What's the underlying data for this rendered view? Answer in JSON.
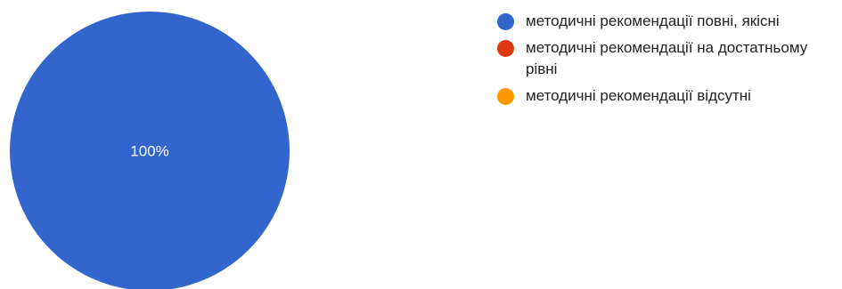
{
  "chart_data": {
    "type": "pie",
    "slices": [
      {
        "label": "методичні рекомендації повні, якісні",
        "value": 100,
        "display": "100%",
        "color": "#3366cc"
      },
      {
        "label": "методичні рекомендації на достатньому рівні",
        "value": 0,
        "display": "",
        "color": "#dc3912"
      },
      {
        "label": "методичні рекомендації відсутні",
        "value": 0,
        "display": "",
        "color": "#ff9900"
      }
    ],
    "legend_position": "right"
  }
}
